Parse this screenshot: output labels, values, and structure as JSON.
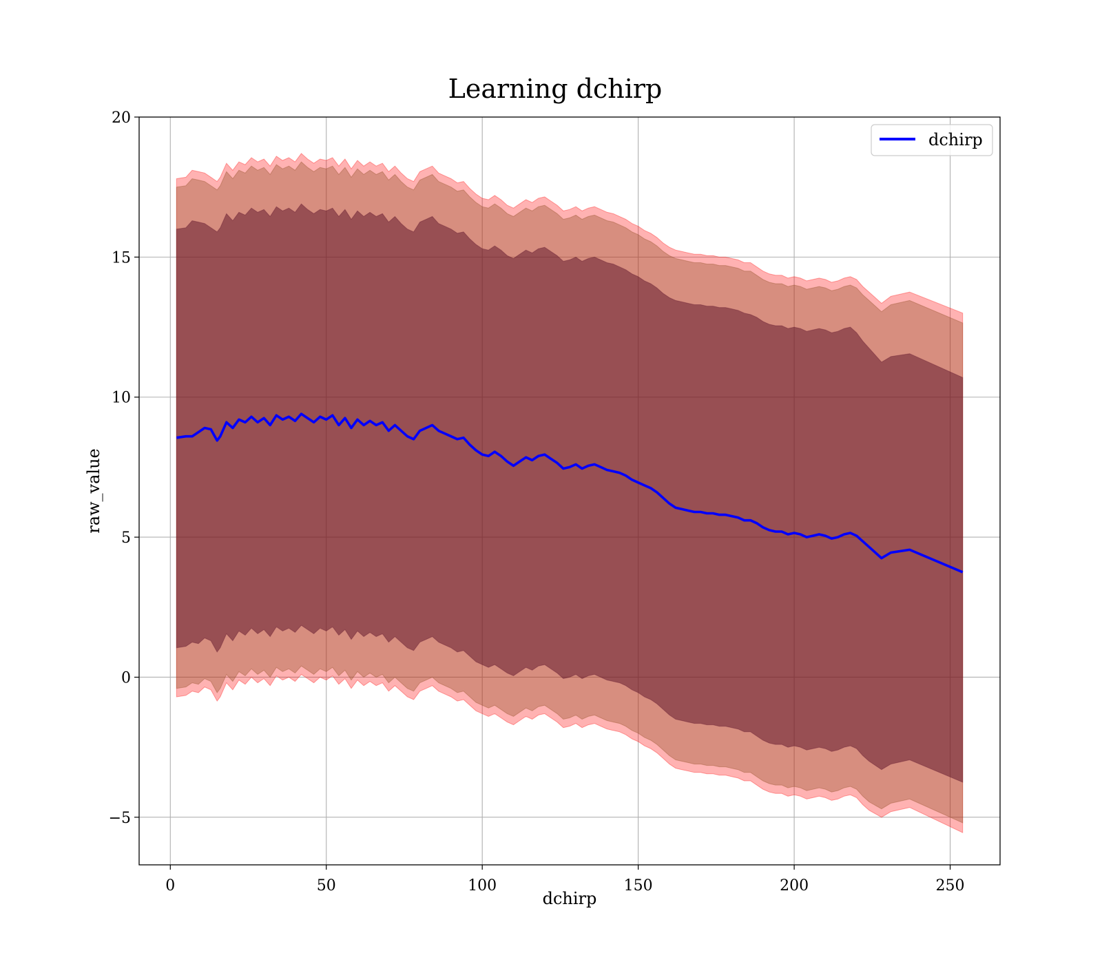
{
  "chart_data": {
    "type": "line",
    "title": "Learning dchirp",
    "xlabel": "dchirp",
    "ylabel": "raw_value",
    "xlim": [
      -10,
      266
    ],
    "ylim": [
      -6.7,
      20
    ],
    "xticks": [
      0,
      50,
      100,
      150,
      200,
      250
    ],
    "yticks": [
      -5,
      0,
      5,
      10,
      15,
      20
    ],
    "xtick_labels": [
      "0",
      "50",
      "100",
      "150",
      "200",
      "250"
    ],
    "ytick_labels": [
      "−5",
      "0",
      "5",
      "10",
      "15",
      "20"
    ],
    "grid": true,
    "legend": {
      "position": "top-right",
      "entries": [
        "dchirp"
      ]
    },
    "colors": {
      "line": "#0000ff",
      "band_outer": "#ff0000",
      "band_middle": "#8b4a1f",
      "band_inner": "#5a0f28",
      "grid": "#b0b0b0"
    },
    "x": [
      2,
      5,
      7,
      9,
      11,
      13,
      15,
      16,
      18,
      20,
      22,
      24,
      26,
      28,
      30,
      32,
      34,
      36,
      38,
      40,
      42,
      44,
      46,
      48,
      50,
      52,
      54,
      56,
      58,
      60,
      62,
      64,
      66,
      68,
      70,
      72,
      74,
      76,
      78,
      80,
      82,
      84,
      86,
      88,
      90,
      92,
      94,
      96,
      98,
      100,
      102,
      104,
      106,
      108,
      110,
      112,
      114,
      116,
      118,
      120,
      122,
      124,
      126,
      128,
      130,
      132,
      134,
      136,
      138,
      140,
      142,
      144,
      146,
      148,
      150,
      152,
      154,
      156,
      158,
      160,
      162,
      164,
      166,
      168,
      170,
      172,
      174,
      176,
      178,
      180,
      182,
      184,
      186,
      188,
      190,
      192,
      194,
      196,
      198,
      200,
      202,
      204,
      206,
      208,
      210,
      212,
      214,
      216,
      218,
      220,
      222,
      224,
      228,
      231,
      237,
      254
    ],
    "series": [
      {
        "name": "dchirp",
        "values": [
          8.55,
          8.6,
          8.6,
          8.75,
          8.9,
          8.85,
          8.45,
          8.6,
          9.1,
          8.9,
          9.2,
          9.1,
          9.3,
          9.1,
          9.25,
          9.0,
          9.35,
          9.2,
          9.3,
          9.15,
          9.4,
          9.25,
          9.1,
          9.3,
          9.2,
          9.35,
          9.0,
          9.25,
          8.9,
          9.2,
          9.0,
          9.15,
          9.0,
          9.1,
          8.8,
          9.0,
          8.8,
          8.6,
          8.5,
          8.8,
          8.9,
          9.0,
          8.8,
          8.7,
          8.6,
          8.5,
          8.55,
          8.3,
          8.1,
          7.95,
          7.9,
          8.05,
          7.9,
          7.7,
          7.55,
          7.7,
          7.85,
          7.75,
          7.9,
          7.95,
          7.8,
          7.65,
          7.45,
          7.5,
          7.6,
          7.45,
          7.55,
          7.6,
          7.5,
          7.4,
          7.35,
          7.3,
          7.2,
          7.05,
          6.95,
          6.85,
          6.75,
          6.6,
          6.4,
          6.2,
          6.05,
          6.0,
          5.95,
          5.9,
          5.9,
          5.85,
          5.85,
          5.8,
          5.8,
          5.75,
          5.7,
          5.6,
          5.6,
          5.5,
          5.35,
          5.25,
          5.2,
          5.2,
          5.1,
          5.15,
          5.1,
          5.0,
          5.05,
          5.1,
          5.05,
          4.95,
          5.0,
          5.1,
          5.15,
          5.05,
          4.85,
          4.65,
          4.25,
          4.45,
          4.55,
          3.75
        ]
      }
    ],
    "bands": [
      {
        "level": "outer",
        "upper": [
          17.8,
          17.85,
          18.1,
          18.05,
          18.0,
          17.85,
          17.7,
          17.85,
          18.35,
          18.1,
          18.4,
          18.3,
          18.55,
          18.4,
          18.5,
          18.25,
          18.6,
          18.45,
          18.55,
          18.4,
          18.7,
          18.5,
          18.35,
          18.5,
          18.45,
          18.55,
          18.25,
          18.5,
          18.15,
          18.45,
          18.25,
          18.4,
          18.25,
          18.35,
          18.05,
          18.25,
          18.0,
          17.8,
          17.7,
          18.05,
          18.15,
          18.25,
          18.0,
          17.9,
          17.8,
          17.65,
          17.7,
          17.45,
          17.25,
          17.1,
          17.05,
          17.2,
          17.05,
          16.85,
          16.75,
          16.9,
          17.05,
          16.95,
          17.1,
          17.15,
          17.0,
          16.85,
          16.65,
          16.7,
          16.8,
          16.65,
          16.75,
          16.8,
          16.7,
          16.6,
          16.55,
          16.45,
          16.35,
          16.2,
          16.1,
          15.95,
          15.85,
          15.7,
          15.5,
          15.35,
          15.25,
          15.2,
          15.15,
          15.1,
          15.1,
          15.05,
          15.05,
          15.0,
          15.0,
          14.95,
          14.9,
          14.8,
          14.8,
          14.65,
          14.5,
          14.4,
          14.35,
          14.35,
          14.25,
          14.3,
          14.25,
          14.15,
          14.2,
          14.25,
          14.2,
          14.1,
          14.15,
          14.25,
          14.3,
          14.2,
          13.95,
          13.75,
          13.35,
          13.6,
          13.75,
          13.0
        ],
        "lower": [
          -0.7,
          -0.65,
          -0.5,
          -0.55,
          -0.35,
          -0.45,
          -0.85,
          -0.7,
          -0.2,
          -0.45,
          -0.1,
          -0.25,
          0.0,
          -0.2,
          -0.05,
          -0.3,
          0.05,
          -0.1,
          0.0,
          -0.15,
          0.1,
          -0.05,
          -0.2,
          0.0,
          -0.1,
          0.05,
          -0.25,
          -0.05,
          -0.4,
          -0.1,
          -0.3,
          -0.15,
          -0.3,
          -0.2,
          -0.5,
          -0.3,
          -0.5,
          -0.7,
          -0.8,
          -0.5,
          -0.4,
          -0.3,
          -0.5,
          -0.6,
          -0.7,
          -0.85,
          -0.8,
          -1.0,
          -1.2,
          -1.3,
          -1.4,
          -1.3,
          -1.45,
          -1.6,
          -1.7,
          -1.55,
          -1.4,
          -1.5,
          -1.35,
          -1.3,
          -1.45,
          -1.6,
          -1.8,
          -1.75,
          -1.65,
          -1.8,
          -1.7,
          -1.65,
          -1.75,
          -1.85,
          -1.9,
          -1.95,
          -2.05,
          -2.2,
          -2.3,
          -2.45,
          -2.55,
          -2.7,
          -2.9,
          -3.1,
          -3.25,
          -3.3,
          -3.35,
          -3.4,
          -3.4,
          -3.45,
          -3.45,
          -3.5,
          -3.5,
          -3.55,
          -3.6,
          -3.7,
          -3.7,
          -3.85,
          -4.0,
          -4.1,
          -4.15,
          -4.15,
          -4.25,
          -4.2,
          -4.25,
          -4.35,
          -4.3,
          -4.25,
          -4.3,
          -4.4,
          -4.35,
          -4.25,
          -4.2,
          -4.3,
          -4.55,
          -4.75,
          -5.0,
          -4.8,
          -4.65,
          -5.55
        ]
      },
      {
        "level": "middle",
        "upper": [
          17.5,
          17.55,
          17.8,
          17.75,
          17.7,
          17.55,
          17.4,
          17.55,
          18.05,
          17.8,
          18.1,
          18.0,
          18.25,
          18.1,
          18.2,
          17.95,
          18.3,
          18.15,
          18.25,
          18.1,
          18.4,
          18.2,
          18.05,
          18.2,
          18.15,
          18.25,
          17.95,
          18.2,
          17.85,
          18.15,
          17.95,
          18.1,
          17.95,
          18.05,
          17.75,
          17.95,
          17.7,
          17.5,
          17.4,
          17.75,
          17.85,
          17.95,
          17.7,
          17.6,
          17.5,
          17.35,
          17.4,
          17.15,
          16.95,
          16.8,
          16.75,
          16.9,
          16.75,
          16.55,
          16.45,
          16.6,
          16.75,
          16.65,
          16.8,
          16.85,
          16.7,
          16.55,
          16.35,
          16.4,
          16.5,
          16.35,
          16.45,
          16.5,
          16.4,
          16.3,
          16.25,
          16.15,
          16.05,
          15.9,
          15.8,
          15.65,
          15.55,
          15.4,
          15.2,
          15.05,
          14.95,
          14.9,
          14.85,
          14.8,
          14.8,
          14.75,
          14.75,
          14.7,
          14.7,
          14.65,
          14.6,
          14.5,
          14.5,
          14.35,
          14.2,
          14.1,
          14.05,
          14.05,
          13.95,
          14.0,
          13.95,
          13.85,
          13.9,
          13.95,
          13.9,
          13.8,
          13.85,
          13.95,
          14.0,
          13.9,
          13.65,
          13.45,
          13.05,
          13.3,
          13.45,
          12.65
        ],
        "lower": [
          -0.4,
          -0.35,
          -0.2,
          -0.25,
          -0.05,
          -0.15,
          -0.55,
          -0.4,
          0.1,
          -0.15,
          0.2,
          0.05,
          0.3,
          0.1,
          0.25,
          0.0,
          0.35,
          0.2,
          0.3,
          0.15,
          0.4,
          0.25,
          0.1,
          0.3,
          0.2,
          0.35,
          0.05,
          0.25,
          -0.1,
          0.2,
          0.0,
          0.15,
          0.0,
          0.1,
          -0.2,
          0.0,
          -0.2,
          -0.4,
          -0.5,
          -0.2,
          -0.1,
          0.0,
          -0.2,
          -0.3,
          -0.4,
          -0.55,
          -0.5,
          -0.7,
          -0.9,
          -1.0,
          -1.1,
          -1.0,
          -1.15,
          -1.3,
          -1.4,
          -1.25,
          -1.1,
          -1.2,
          -1.05,
          -1.0,
          -1.15,
          -1.3,
          -1.5,
          -1.45,
          -1.35,
          -1.5,
          -1.4,
          -1.35,
          -1.45,
          -1.55,
          -1.6,
          -1.65,
          -1.75,
          -1.9,
          -2.0,
          -2.15,
          -2.25,
          -2.4,
          -2.6,
          -2.8,
          -2.95,
          -3.0,
          -3.05,
          -3.1,
          -3.1,
          -3.15,
          -3.15,
          -3.2,
          -3.2,
          -3.25,
          -3.3,
          -3.4,
          -3.4,
          -3.55,
          -3.7,
          -3.8,
          -3.85,
          -3.85,
          -3.95,
          -3.9,
          -3.95,
          -4.05,
          -4.0,
          -3.95,
          -4.0,
          -4.1,
          -4.05,
          -3.95,
          -3.9,
          -4.0,
          -4.25,
          -4.45,
          -4.7,
          -4.5,
          -4.35,
          -5.2
        ]
      },
      {
        "level": "inner",
        "upper": [
          16.0,
          16.05,
          16.3,
          16.25,
          16.2,
          16.05,
          15.9,
          16.05,
          16.55,
          16.3,
          16.6,
          16.5,
          16.75,
          16.6,
          16.7,
          16.45,
          16.8,
          16.65,
          16.75,
          16.6,
          16.9,
          16.7,
          16.55,
          16.7,
          16.65,
          16.75,
          16.45,
          16.7,
          16.35,
          16.65,
          16.45,
          16.6,
          16.45,
          16.55,
          16.25,
          16.45,
          16.2,
          16.0,
          15.9,
          16.25,
          16.35,
          16.45,
          16.2,
          16.1,
          16.0,
          15.85,
          15.9,
          15.65,
          15.45,
          15.3,
          15.25,
          15.4,
          15.25,
          15.05,
          14.95,
          15.1,
          15.25,
          15.15,
          15.3,
          15.35,
          15.2,
          15.05,
          14.85,
          14.9,
          15.0,
          14.85,
          14.95,
          15.0,
          14.9,
          14.8,
          14.75,
          14.65,
          14.55,
          14.4,
          14.3,
          14.15,
          14.05,
          13.9,
          13.7,
          13.55,
          13.45,
          13.4,
          13.35,
          13.3,
          13.3,
          13.25,
          13.25,
          13.2,
          13.2,
          13.15,
          13.1,
          13.0,
          12.95,
          12.85,
          12.7,
          12.6,
          12.55,
          12.55,
          12.45,
          12.5,
          12.45,
          12.35,
          12.4,
          12.45,
          12.4,
          12.3,
          12.35,
          12.45,
          12.5,
          12.3,
          12.0,
          11.75,
          11.25,
          11.45,
          11.55,
          10.7
        ],
        "lower": [
          1.05,
          1.1,
          1.25,
          1.2,
          1.4,
          1.3,
          0.9,
          1.05,
          1.55,
          1.3,
          1.65,
          1.5,
          1.75,
          1.55,
          1.7,
          1.45,
          1.8,
          1.65,
          1.75,
          1.6,
          1.85,
          1.7,
          1.55,
          1.75,
          1.65,
          1.8,
          1.5,
          1.7,
          1.35,
          1.65,
          1.45,
          1.6,
          1.45,
          1.55,
          1.25,
          1.45,
          1.25,
          1.05,
          0.95,
          1.25,
          1.35,
          1.45,
          1.25,
          1.15,
          1.05,
          0.9,
          0.95,
          0.75,
          0.55,
          0.45,
          0.35,
          0.45,
          0.3,
          0.15,
          0.05,
          0.2,
          0.35,
          0.25,
          0.4,
          0.45,
          0.3,
          0.15,
          -0.05,
          0.0,
          0.1,
          -0.05,
          0.05,
          0.1,
          0.0,
          -0.1,
          -0.15,
          -0.2,
          -0.3,
          -0.45,
          -0.55,
          -0.7,
          -0.8,
          -0.95,
          -1.15,
          -1.35,
          -1.5,
          -1.55,
          -1.6,
          -1.65,
          -1.65,
          -1.7,
          -1.7,
          -1.75,
          -1.75,
          -1.8,
          -1.85,
          -1.95,
          -1.95,
          -2.1,
          -2.25,
          -2.35,
          -2.4,
          -2.4,
          -2.5,
          -2.45,
          -2.5,
          -2.6,
          -2.55,
          -2.5,
          -2.55,
          -2.65,
          -2.6,
          -2.5,
          -2.45,
          -2.55,
          -2.8,
          -3.0,
          -3.3,
          -3.1,
          -2.95,
          -3.75
        ]
      }
    ]
  }
}
